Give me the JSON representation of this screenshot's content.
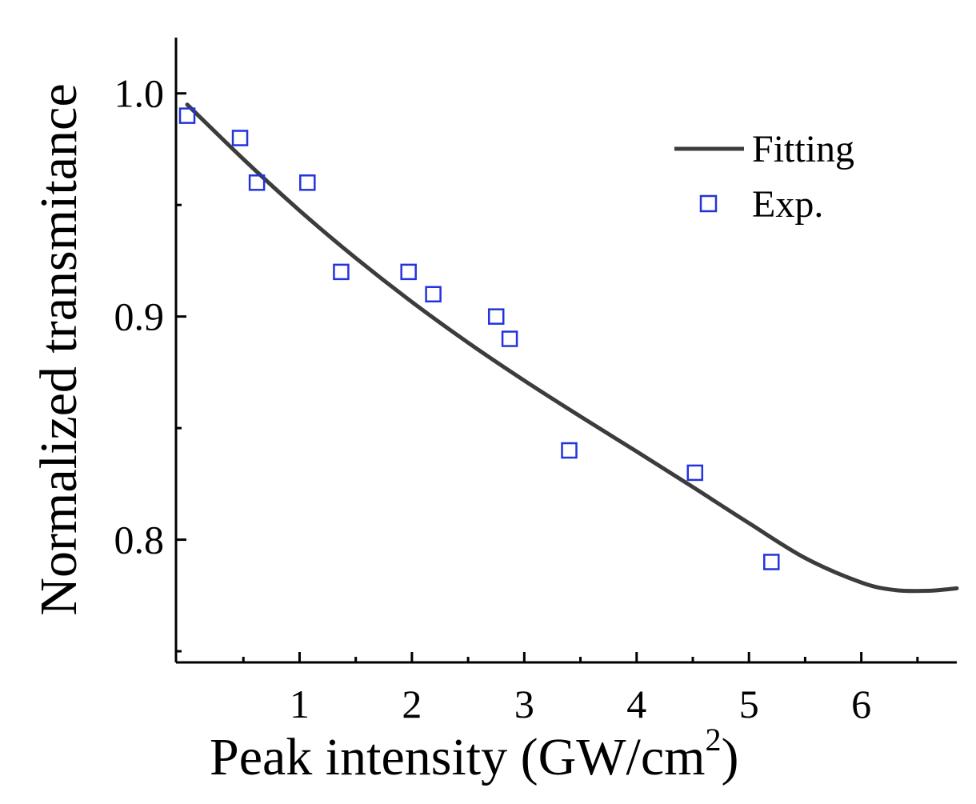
{
  "chart_data": {
    "type": "scatter",
    "title": "",
    "xlabel_main": "Peak intensity (GW/cm",
    "xlabel_sup": "2",
    "xlabel_end": ")",
    "ylabel": "Normalized transmitance",
    "xlim": [
      -0.1,
      6.85
    ],
    "ylim": [
      0.745,
      1.025
    ],
    "xticks": [
      1,
      2,
      3,
      4,
      5,
      6
    ],
    "xtick_labels": [
      "1",
      "2",
      "3",
      "4",
      "5",
      "6"
    ],
    "xminor": [
      0.5,
      1.5,
      2.5,
      3.5,
      4.5,
      5.5,
      6.5
    ],
    "yticks": [
      0.8,
      0.9,
      1.0
    ],
    "ytick_labels": [
      "0.8",
      "0.9",
      "1.0"
    ],
    "yminor": [
      0.75,
      0.85,
      0.95
    ],
    "legend": {
      "position": "top-right",
      "entries": [
        "Fitting",
        "Exp."
      ]
    },
    "series": [
      {
        "name": "Fitting",
        "kind": "line",
        "color": "#3c3c3c",
        "x": [
          0.0,
          0.5,
          1.0,
          1.5,
          2.0,
          2.5,
          3.0,
          3.5,
          4.0,
          4.5,
          5.0,
          5.5,
          6.0,
          6.3,
          6.6,
          6.85
        ],
        "y": [
          0.995,
          0.9705,
          0.9475,
          0.9262,
          0.9065,
          0.8883,
          0.8713,
          0.8552,
          0.8395,
          0.8236,
          0.8074,
          0.7918,
          0.7808,
          0.7774,
          0.7771,
          0.7782
        ]
      },
      {
        "name": "Exp.",
        "kind": "scatter",
        "marker": "open-square",
        "color": "#2233dd",
        "x": [
          0.0,
          0.47,
          0.62,
          1.07,
          1.37,
          1.97,
          2.19,
          2.75,
          2.87,
          3.4,
          4.52,
          5.2
        ],
        "y": [
          0.99,
          0.98,
          0.96,
          0.96,
          0.92,
          0.92,
          0.91,
          0.9,
          0.89,
          0.84,
          0.83,
          0.79
        ]
      }
    ]
  }
}
